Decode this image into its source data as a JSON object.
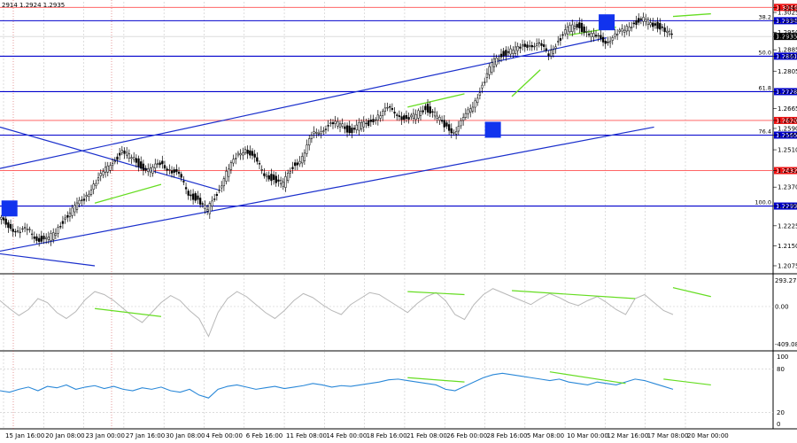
{
  "chart_data": [
    {
      "type": "candlestick",
      "instrument_readout": "2914 1.2924 1.2935",
      "title": "",
      "xlabel": "",
      "ylabel": "",
      "ylim": [
        1.2055,
        1.3065
      ],
      "price_ticks": [
        "1.3044",
        "1.3025",
        "1.2994",
        "1.2950",
        "1.2935",
        "1.2885",
        "1.2861",
        "1.2805",
        "1.2728",
        "1.2665",
        "1.2620",
        "1.2590",
        "1.2565",
        "1.2510",
        "1.2432",
        "1.2370",
        "1.2299",
        "1.2225",
        "1.2150",
        "1.2075"
      ],
      "x_labels": [
        "15 Jan 16:00",
        "20 Jan 08:00",
        "23 Jan 00:00",
        "27 Jan 16:00",
        "30 Jan 08:00",
        "4 Feb 00:00",
        "6 Feb 16:00",
        "11 Feb 08:00",
        "14 Feb 00:00",
        "18 Feb 16:00",
        "21 Feb 08:00",
        "26 Feb 00:00",
        "28 Feb 16:00",
        "5 Mar 08:00",
        "10 Mar 00:00",
        "12 Mar 16:00",
        "17 Mar 08:00",
        "20 Mar 00:00"
      ],
      "fib_levels": [
        {
          "ratio": "38.2",
          "price": 1.2994,
          "label": "1.2994"
        },
        {
          "ratio": "50.0",
          "price": 1.2861,
          "label": "1.2861"
        },
        {
          "ratio": "61.8",
          "price": 1.2728,
          "label": "1.2728"
        },
        {
          "ratio": "76.4",
          "price": 1.2565,
          "label": "1.2565"
        },
        {
          "ratio": "100.0",
          "price": 1.2299,
          "label": "1.2299"
        }
      ],
      "red_levels": [
        {
          "price": 1.3044,
          "label": "1.3044"
        },
        {
          "price": 1.262,
          "label": "1.2620"
        },
        {
          "price": 1.2432,
          "label": "1.2432"
        }
      ],
      "last_price": {
        "price": 1.2935,
        "label": "1.2935"
      },
      "close_series": [
        1.225,
        1.223,
        1.22,
        1.221,
        1.218,
        1.217,
        1.22,
        1.226,
        1.229,
        1.233,
        1.238,
        1.242,
        1.247,
        1.25,
        1.248,
        1.245,
        1.243,
        1.246,
        1.244,
        1.241,
        1.235,
        1.232,
        1.228,
        1.235,
        1.242,
        1.248,
        1.252,
        1.247,
        1.242,
        1.24,
        1.238,
        1.245,
        1.248,
        1.256,
        1.259,
        1.26,
        1.261,
        1.258,
        1.26,
        1.261,
        1.264,
        1.266,
        1.265,
        1.262,
        1.264,
        1.267,
        1.264,
        1.26,
        1.258,
        1.262,
        1.268,
        1.275,
        1.283,
        1.287,
        1.288,
        1.289,
        1.291,
        1.29,
        1.287,
        1.292,
        1.296,
        1.298,
        1.295,
        1.293,
        1.292,
        1.2935,
        1.296,
        1.299,
        1.2995,
        1.298,
        1.297,
        1.2935
      ],
      "blue_boxes": [
        {
          "index": 1,
          "price": 1.229
        },
        {
          "index": 52,
          "price": 1.2585
        },
        {
          "index": 64,
          "price": 1.2988
        }
      ],
      "trend_lines": [
        {
          "from": [
            0,
            1.244
          ],
          "to": [
            64,
            1.293
          ]
        },
        {
          "from": [
            0,
            1.213
          ],
          "to": [
            69,
            1.2595
          ]
        },
        {
          "from": [
            0,
            1.2595
          ],
          "to": [
            23,
            1.236
          ]
        },
        {
          "from": [
            0,
            1.212
          ],
          "to": [
            10,
            1.2075
          ]
        }
      ],
      "divergence_lines": [
        {
          "from": [
            10,
            1.231
          ],
          "to": [
            17,
            1.238
          ]
        },
        {
          "from": [
            43,
            1.267
          ],
          "to": [
            49,
            1.272
          ]
        },
        {
          "from": [
            54,
            1.271
          ],
          "to": [
            57,
            1.281
          ]
        },
        {
          "from": [
            60,
            1.294
          ],
          "to": [
            65,
            1.297
          ]
        },
        {
          "from": [
            71,
            1.301
          ],
          "to": [
            75,
            1.302
          ]
        }
      ]
    },
    {
      "type": "line",
      "name": "cci",
      "scale_labels": [
        "293.2779",
        "0.00",
        "-409.084"
      ],
      "ylim": [
        -409.084,
        293.2779
      ],
      "values": [
        60,
        -20,
        -90,
        -30,
        80,
        40,
        -60,
        -120,
        -50,
        70,
        150,
        120,
        60,
        -20,
        -100,
        -160,
        -60,
        40,
        110,
        60,
        -40,
        -120,
        -300,
        -60,
        80,
        150,
        100,
        20,
        -60,
        -120,
        -40,
        60,
        130,
        90,
        20,
        -40,
        -80,
        20,
        80,
        140,
        120,
        60,
        0,
        -60,
        30,
        100,
        140,
        60,
        -80,
        -130,
        20,
        120,
        180,
        140,
        100,
        60,
        20,
        80,
        130,
        90,
        40,
        10,
        60,
        100,
        40,
        -30,
        -80,
        80,
        120,
        40,
        -40,
        -80
      ],
      "divergence_lines": [
        {
          "from": [
            10,
            -20
          ],
          "to": [
            17,
            -100
          ]
        },
        {
          "from": [
            43,
            150
          ],
          "to": [
            49,
            120
          ]
        },
        {
          "from": [
            54,
            160
          ],
          "to": [
            67,
            80
          ]
        },
        {
          "from": [
            71,
            190
          ],
          "to": [
            75,
            100
          ]
        }
      ]
    },
    {
      "type": "line",
      "name": "stochastic",
      "scale_labels": [
        "100",
        "80",
        "20",
        "0"
      ],
      "ylim": [
        0,
        100
      ],
      "levels": [
        80,
        20
      ],
      "values": [
        50,
        48,
        52,
        55,
        50,
        56,
        54,
        58,
        52,
        55,
        57,
        53,
        56,
        52,
        50,
        54,
        52,
        55,
        50,
        48,
        52,
        44,
        40,
        52,
        56,
        58,
        55,
        52,
        54,
        56,
        53,
        55,
        57,
        60,
        58,
        55,
        57,
        56,
        58,
        60,
        62,
        65,
        66,
        64,
        62,
        60,
        58,
        52,
        50,
        56,
        62,
        68,
        72,
        74,
        72,
        70,
        68,
        66,
        64,
        66,
        62,
        60,
        58,
        62,
        60,
        58,
        62,
        66,
        64,
        60,
        56,
        52
      ],
      "divergence_lines": [
        {
          "from": [
            43,
            68
          ],
          "to": [
            49,
            62
          ]
        },
        {
          "from": [
            58,
            76
          ],
          "to": [
            66,
            60
          ]
        },
        {
          "from": [
            70,
            66
          ],
          "to": [
            75,
            58
          ]
        }
      ]
    }
  ],
  "colors": {
    "candle": "#000000",
    "fib_line": "#0000cc",
    "red_line": "#ff5050",
    "trend": "#1a2fcc",
    "divergence": "#66dd22",
    "box": "#1133ee",
    "cci": "#b8b8b8",
    "stoch": "#2a88d8",
    "grid": "#c8c8c8",
    "vline": "#cc3333"
  }
}
